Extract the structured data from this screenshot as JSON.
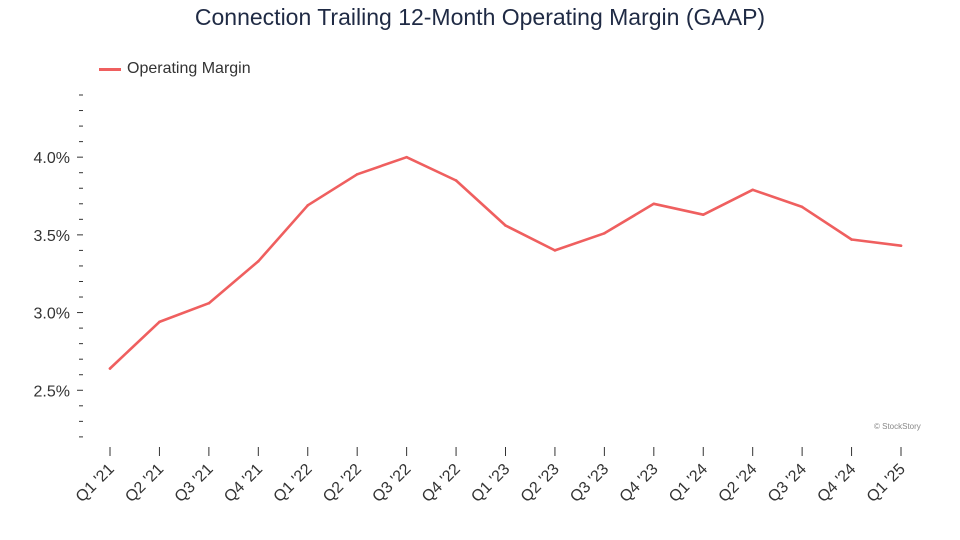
{
  "title": "Connection Trailing 12-Month Operating Margin (GAAP)",
  "credit": "© StockStory",
  "chart_data": {
    "type": "line",
    "title": "Connection Trailing 12-Month Operating Margin (GAAP)",
    "xlabel": "",
    "ylabel": "",
    "categories": [
      "Q1 '21",
      "Q2 '21",
      "Q3 '21",
      "Q4 '21",
      "Q1 '22",
      "Q2 '22",
      "Q3 '22",
      "Q4 '22",
      "Q1 '23",
      "Q2 '23",
      "Q3 '23",
      "Q4 '23",
      "Q1 '24",
      "Q2 '24",
      "Q3 '24",
      "Q4 '24",
      "Q1 '25"
    ],
    "series": [
      {
        "name": "Operating Margin",
        "color": "#ef5f5f",
        "values": [
          2.64,
          2.94,
          3.06,
          3.33,
          3.69,
          3.89,
          4.0,
          3.85,
          3.56,
          3.4,
          3.51,
          3.7,
          3.63,
          3.79,
          3.68,
          3.47,
          3.43
        ]
      }
    ],
    "y_ticks": [
      2.5,
      3.0,
      3.5,
      4.0
    ],
    "y_tick_labels": [
      "2.5%",
      "3.0%",
      "3.5%",
      "4.0%"
    ],
    "ylim": [
      2.18,
      4.4
    ],
    "grid": false,
    "legend": "top-left"
  }
}
